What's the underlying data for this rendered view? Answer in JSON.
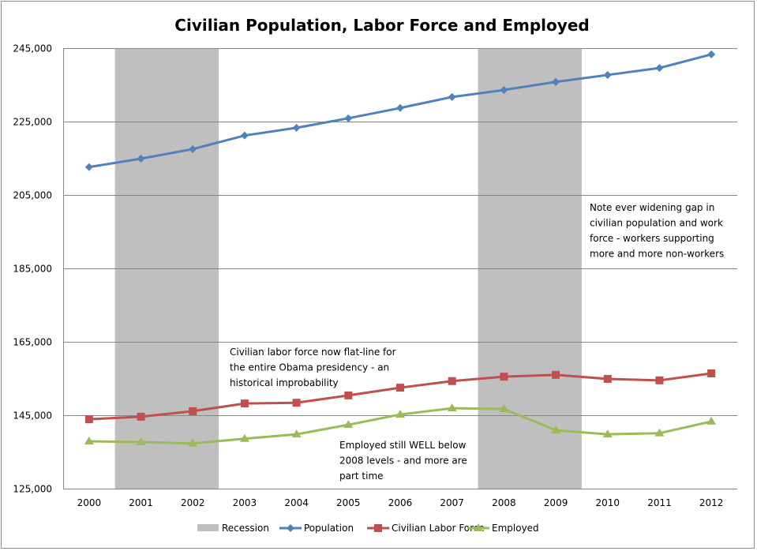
{
  "chart_data": {
    "type": "line",
    "title": "Civilian Population, Labor Force and Employed",
    "xlabel": "",
    "ylabel": "",
    "categories": [
      "2000",
      "2001",
      "2002",
      "2003",
      "2004",
      "2005",
      "2006",
      "2007",
      "2008",
      "2009",
      "2010",
      "2011",
      "2012"
    ],
    "ylim": [
      125000,
      245000
    ],
    "yticks": [
      "125,000",
      "145,000",
      "165,000",
      "185,000",
      "205,000",
      "225,000",
      "245,000"
    ],
    "grid": true,
    "legend_position": "bottom",
    "recessions": {
      "name": "Recession",
      "color": "#bfbfbf",
      "periods": [
        [
          "2001",
          "2002"
        ],
        [
          "2008",
          "2009"
        ]
      ]
    },
    "series": [
      {
        "name": "Population",
        "color": "#4f81bd",
        "marker": "diamond",
        "values": [
          212600,
          214900,
          217500,
          221200,
          223300,
          225900,
          228700,
          231700,
          233600,
          235800,
          237700,
          239600,
          243300
        ]
      },
      {
        "name": "Civilian Labor Force",
        "color": "#c0504d",
        "marker": "square",
        "values": [
          143900,
          144600,
          146100,
          148200,
          148400,
          150400,
          152500,
          154300,
          155500,
          156000,
          154900,
          154500,
          156400
        ]
      },
      {
        "name": "Employed",
        "color": "#9bbb59",
        "marker": "triangle",
        "values": [
          137900,
          137700,
          137300,
          138600,
          139800,
          142400,
          145200,
          146900,
          146700,
          140900,
          139800,
          140100,
          143300
        ]
      }
    ],
    "annotations": [
      {
        "lines": [
          "Note ever widening gap in",
          "civilian population and work",
          "force - workers supporting",
          "more and more non-workers"
        ]
      },
      {
        "lines": [
          "Civilian labor force now flat-line for",
          "the entire Obama presidency - an",
          "historical improbability"
        ]
      },
      {
        "lines": [
          "Employed still WELL  below",
          "2008  levels - and more are",
          "part time"
        ]
      }
    ]
  }
}
